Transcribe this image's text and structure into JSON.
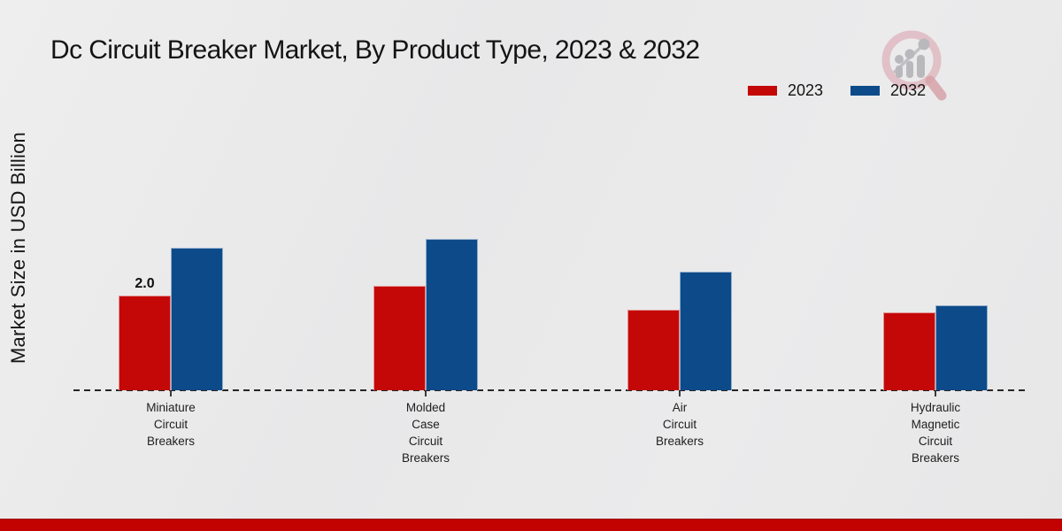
{
  "title": "Dc Circuit Breaker Market, By Product Type, 2023 & 2032",
  "y_axis_label": "Market Size in USD Billion",
  "watermark_icon": "magnifier-bar-chart-logo",
  "footer": {
    "accent_color": "#c20101"
  },
  "chart_data": {
    "type": "bar",
    "title": "Dc Circuit Breaker Market, By Product Type, 2023 & 2032",
    "xlabel": "",
    "ylabel": "Market Size in USD Billion",
    "ylim": [
      0,
      3.5
    ],
    "grid": false,
    "legend_position": "top-right",
    "axis_style": "dashed-baseline-only",
    "categories": [
      "Miniature\nCircuit\nBreakers",
      "Molded\nCase\nCircuit\nBreakers",
      "Air\nCircuit\nBreakers",
      "Hydraulic\nMagnetic\nCircuit\nBreakers"
    ],
    "series": [
      {
        "name": "2023",
        "color": "#c40808",
        "values": [
          2.0,
          2.2,
          1.7,
          1.65
        ]
      },
      {
        "name": "2032",
        "color": "#0d4a89",
        "values": [
          3.0,
          3.2,
          2.5,
          1.8
        ]
      }
    ],
    "annotations": [
      {
        "text": "2.0",
        "category_index": 0,
        "series_index": 0
      }
    ]
  }
}
